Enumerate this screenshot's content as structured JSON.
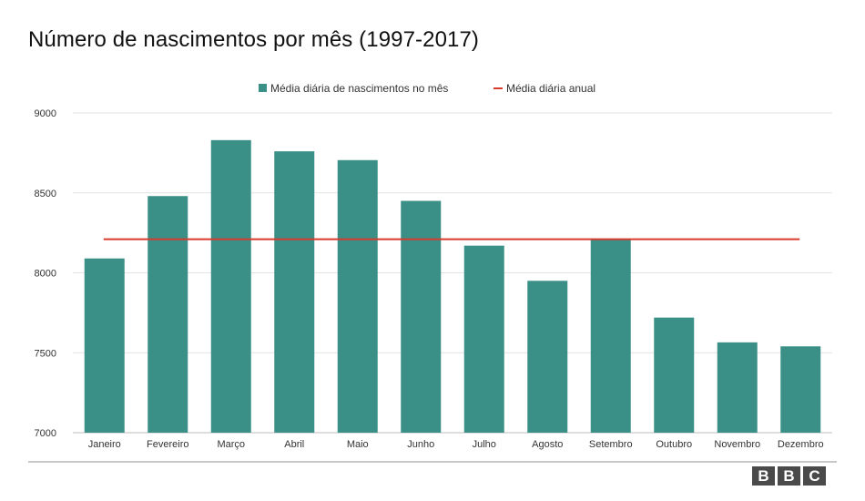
{
  "title": "Número de nascimentos por mês (1997-2017)",
  "logo": {
    "letters": [
      "B",
      "B",
      "C"
    ]
  },
  "colors": {
    "bar": "#3a9087",
    "line": "#d93a2e",
    "grid": "#e2e2e2",
    "baseline": "#bdbdbd"
  },
  "chart_data": {
    "type": "bar",
    "title": "Número de nascimentos por mês (1997-2017)",
    "categories": [
      "Janeiro",
      "Fevereiro",
      "Março",
      "Abril",
      "Maio",
      "Junho",
      "Julho",
      "Agosto",
      "Setembro",
      "Outubro",
      "Novembro",
      "Dezembro"
    ],
    "series": [
      {
        "name": "Média diária de nascimentos no mês",
        "type": "bar",
        "values": [
          8090,
          8480,
          8830,
          8760,
          8705,
          8450,
          8170,
          7950,
          8210,
          7720,
          7565,
          7540
        ]
      },
      {
        "name": "Média diária anual",
        "type": "line",
        "value": 8210
      }
    ],
    "ylim": [
      7000,
      9000
    ],
    "yticks": [
      7000,
      7500,
      8000,
      8500,
      9000
    ],
    "xlabel": "",
    "ylabel": "",
    "grid": true,
    "legend": "top-center"
  }
}
